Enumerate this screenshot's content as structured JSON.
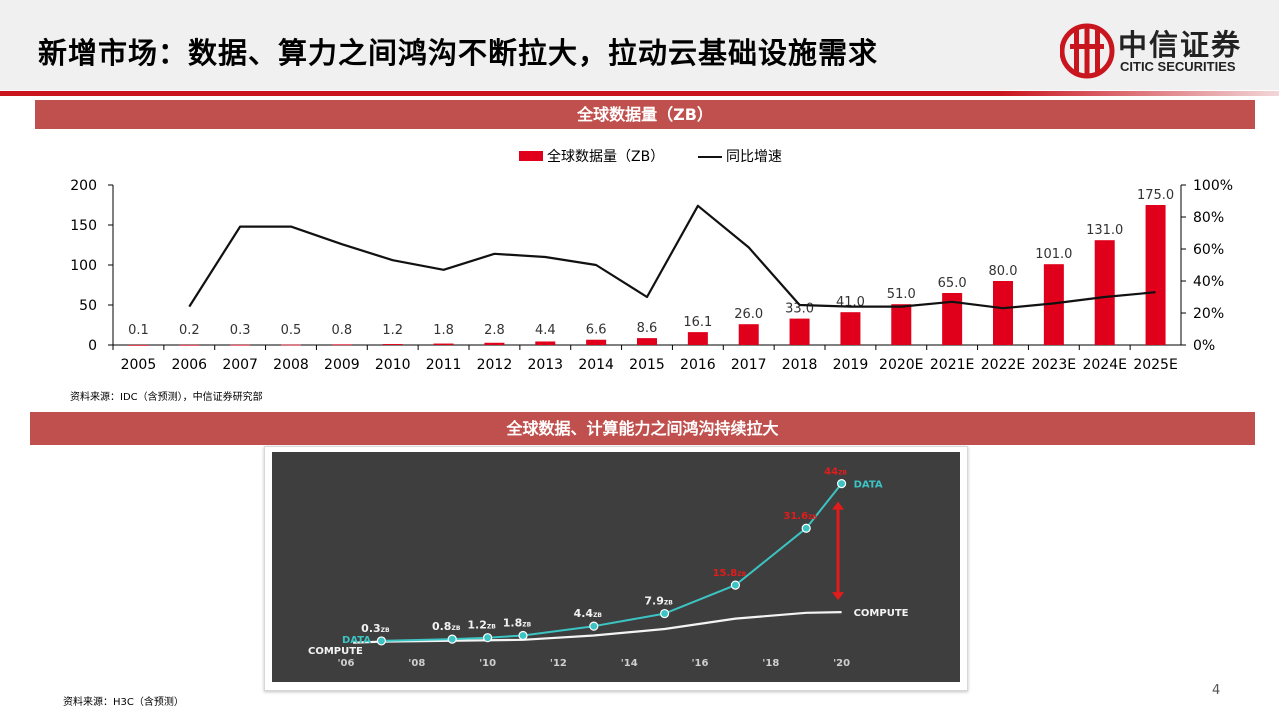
{
  "header": {
    "title": "新增市场：数据、算力之间鸿沟不断拉大，拉动云基础设施需求",
    "logo_cn": "中信证券",
    "logo_en": "CITIC SECURITIES"
  },
  "section1": {
    "banner": "全球数据量（ZB）",
    "source": "资料来源：IDC（含预测），中信证券研究部"
  },
  "section2": {
    "banner": "全球数据、计算能力之间鸿沟持续拉大",
    "source": "资料来源：H3C（含预测）"
  },
  "page_number": "4",
  "colors": {
    "brand_red": "#c9151e",
    "banner_red": "#c0504d",
    "bar_red": "#e0001b",
    "dark_panel": "#3e3e3e",
    "teal": "#3cc3c3",
    "annot_red": "#e21b1b"
  },
  "chart_data": [
    {
      "type": "bar",
      "title": "",
      "categories": [
        "2005",
        "2006",
        "2007",
        "2008",
        "2009",
        "2010",
        "2011",
        "2012",
        "2013",
        "2014",
        "2015",
        "2016",
        "2017",
        "2018",
        "2019",
        "2020E",
        "2021E",
        "2022E",
        "2023E",
        "2024E",
        "2025E"
      ],
      "series": [
        {
          "name": "全球数据量（ZB）",
          "type": "bar",
          "axis": "left",
          "values": [
            0.1,
            0.2,
            0.3,
            0.5,
            0.8,
            1.2,
            1.8,
            2.8,
            4.4,
            6.6,
            8.6,
            16.1,
            26.0,
            33.0,
            41.0,
            51.0,
            65.0,
            80.0,
            101.0,
            131.0,
            175.0
          ],
          "labels": [
            "0.1",
            "0.2",
            "0.3",
            "0.5",
            "0.8",
            "1.2",
            "1.8",
            "2.8",
            "4.4",
            "6.6",
            "8.6",
            "16.1",
            "26.0",
            "33.0",
            "41.0",
            "51.0",
            "65.0",
            "80.0",
            "101.0",
            "131.0",
            "175.0"
          ]
        },
        {
          "name": "同比增速",
          "type": "line",
          "axis": "right",
          "values": [
            null,
            0.24,
            0.74,
            0.74,
            0.63,
            0.53,
            0.47,
            0.57,
            0.55,
            0.5,
            0.3,
            0.87,
            0.61,
            0.25,
            0.24,
            0.24,
            0.27,
            0.23,
            0.26,
            0.3,
            0.33
          ]
        }
      ],
      "y_left": {
        "min": 0,
        "max": 200,
        "ticks": [
          "0",
          "50",
          "100",
          "150",
          "200"
        ]
      },
      "y_right": {
        "min": 0,
        "max": 1,
        "ticks": [
          "0%",
          "20%",
          "40%",
          "60%",
          "80%",
          "100%"
        ]
      },
      "legend_position": "top-center"
    },
    {
      "type": "line",
      "title": "",
      "x_ticks": [
        "'06",
        "'08",
        "'10",
        "'12",
        "'14",
        "'16",
        "'18",
        "'20"
      ],
      "series": [
        {
          "name": "DATA",
          "points": [
            {
              "year": 2007,
              "value": 0.3,
              "label": "0.3",
              "unit": "ZB"
            },
            {
              "year": 2009,
              "value": 0.8,
              "label": "0.8",
              "unit": "ZB"
            },
            {
              "year": 2010,
              "value": 1.2,
              "label": "1.2",
              "unit": "ZB"
            },
            {
              "year": 2011,
              "value": 1.8,
              "label": "1.8",
              "unit": "ZB"
            },
            {
              "year": 2013,
              "value": 4.4,
              "label": "4.4",
              "unit": "ZB"
            },
            {
              "year": 2015,
              "value": 7.9,
              "label": "7.9",
              "unit": "ZB"
            },
            {
              "year": 2017,
              "value": 15.8,
              "label": "15.8",
              "unit": "ZB"
            },
            {
              "year": 2019,
              "value": 31.6,
              "label": "31.6",
              "unit": "ZB"
            },
            {
              "year": 2020,
              "value": 44,
              "label": "44",
              "unit": "ZB"
            }
          ]
        },
        {
          "name": "COMPUTE",
          "points": [
            {
              "year": 2007,
              "value": 0.1
            },
            {
              "year": 2011,
              "value": 0.6
            },
            {
              "year": 2013,
              "value": 1.8
            },
            {
              "year": 2015,
              "value": 3.6
            },
            {
              "year": 2017,
              "value": 6.5
            },
            {
              "year": 2019,
              "value": 8.1
            },
            {
              "year": 2020,
              "value": 8.3
            }
          ]
        }
      ],
      "annotation": "gap arrow between DATA and COMPUTE at '20"
    }
  ]
}
